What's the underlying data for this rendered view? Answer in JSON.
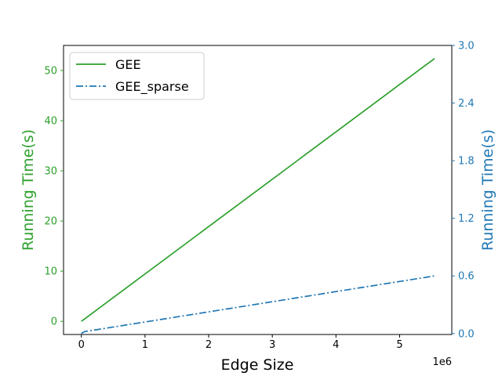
{
  "chart_data": {
    "type": "line",
    "xlabel": "Edge Size",
    "x_offset_label": "1e6",
    "x_multiplier": 1000000,
    "xlim": [
      -0.28,
      5.82
    ],
    "x_ticks": [
      0,
      1,
      2,
      3,
      4,
      5
    ],
    "y_left": {
      "label": "Running Time(s)",
      "color": "#2ca02c",
      "ylim": [
        -2.62,
        55.0
      ],
      "ticks": [
        0,
        10,
        20,
        30,
        40,
        50
      ]
    },
    "y_right": {
      "label": "Running Time(s)",
      "color": "#1f77b4",
      "ylim": [
        -0.01,
        3.0
      ],
      "ticks": [
        "0.0",
        "0.6",
        "1.2",
        "1.8",
        "2.4",
        "3.0"
      ]
    },
    "legend": {
      "placement": "upper-left"
    },
    "grid": false,
    "series": [
      {
        "name": "GEE",
        "axis": "left",
        "color": "#2ca02c",
        "style": "solid",
        "x": [
          0,
          5.55
        ],
        "y": [
          0,
          52.4
        ]
      },
      {
        "name": "GEE_sparse",
        "axis": "right",
        "color": "#1f77b4",
        "style": "dashdot",
        "x": [
          0,
          0.05,
          5.55
        ],
        "y": [
          0,
          0.02,
          0.6
        ]
      }
    ]
  }
}
